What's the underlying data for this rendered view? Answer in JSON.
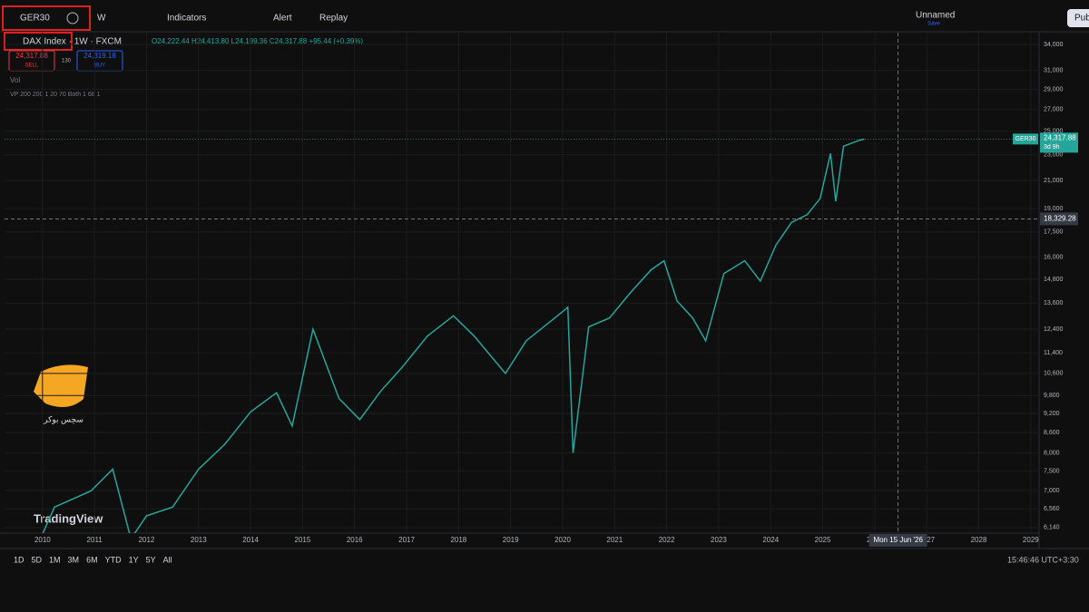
{
  "toolbar": {
    "symbol": "GER30",
    "interval": "W",
    "indicators": "Indicators",
    "alert": "Alert",
    "replay": "Replay",
    "layout": "Unnamed",
    "save": "Save",
    "publish": "Pub"
  },
  "legend": {
    "title": "DAX Index · 1W · FXCM",
    "ohlc": "O24,222.44 H24,413.80 L24,199.36 C24,317.88 +95.44 (+0.39%)",
    "sell_price": "24,317.88",
    "sell": "SELL",
    "spread": "130",
    "buy_price": "24,319.18",
    "buy": "BUY",
    "vol": "Vol",
    "vp": "VP 200 200 1 20 70 Both 1 68 1"
  },
  "watermark": {
    "brand": "TradingView",
    "broker": "سچس بوکر"
  },
  "chart_data": {
    "type": "line",
    "log_scale": true,
    "color": "#26a69a",
    "x": [
      2010.0,
      2010.23,
      2010.93,
      2011.35,
      2011.7,
      2012.0,
      2012.5,
      2013.0,
      2013.5,
      2014.0,
      2014.5,
      2014.8,
      2015.2,
      2015.7,
      2016.1,
      2016.5,
      2016.9,
      2017.4,
      2017.9,
      2018.3,
      2018.9,
      2019.3,
      2019.9,
      2020.1,
      2020.2,
      2020.5,
      2020.9,
      2021.3,
      2021.7,
      2021.95,
      2022.2,
      2022.5,
      2022.75,
      2023.1,
      2023.5,
      2023.8,
      2024.1,
      2024.4,
      2024.7,
      2024.95,
      2025.15,
      2025.25,
      2025.4,
      2025.7,
      2025.8
    ],
    "values": [
      6000,
      6600,
      6990,
      7550,
      5900,
      6400,
      6600,
      7550,
      8240,
      9250,
      9900,
      8800,
      12400,
      9700,
      9000,
      9950,
      10800,
      12100,
      13000,
      12100,
      10600,
      11900,
      13000,
      13400,
      8000,
      12500,
      12900,
      14100,
      15300,
      15800,
      13700,
      12900,
      11900,
      15100,
      15800,
      14700,
      16700,
      18100,
      18600,
      19700,
      23100,
      19500,
      23700,
      24200,
      24317.88
    ],
    "xlim": [
      2009.27,
      2029.16
    ],
    "ylim": [
      6020,
      35450
    ],
    "xticks": [
      2010,
      2011,
      2012,
      2013,
      2014,
      2015,
      2016,
      2017,
      2018,
      2019,
      2020,
      2021,
      2022,
      2023,
      2024,
      2025,
      2026,
      2027,
      2028,
      2029
    ],
    "yticks": [
      {
        "value": 34000,
        "label": "34,000"
      },
      {
        "value": 31000,
        "label": "31,000"
      },
      {
        "value": 29000,
        "label": "29,000"
      },
      {
        "value": 27000,
        "label": "27,000"
      },
      {
        "value": 25000,
        "label": "25,000"
      },
      {
        "value": 23000,
        "label": "23,000"
      },
      {
        "value": 21000,
        "label": "21,000"
      },
      {
        "value": 19000,
        "label": "19,000"
      },
      {
        "value": 17500,
        "label": "17,500"
      },
      {
        "value": 16000,
        "label": "16,000"
      },
      {
        "value": 14800,
        "label": "14,800"
      },
      {
        "value": 13600,
        "label": "13,600"
      },
      {
        "value": 12400,
        "label": "12,400"
      },
      {
        "value": 11400,
        "label": "11,400"
      },
      {
        "value": 10600,
        "label": "10,600"
      },
      {
        "value": 9800,
        "label": "9,800"
      },
      {
        "value": 9200,
        "label": "9,200"
      },
      {
        "value": 8600,
        "label": "8,600"
      },
      {
        "value": 8000,
        "label": "8,000"
      },
      {
        "value": 7500,
        "label": "7,500"
      },
      {
        "value": 7000,
        "label": "7,000"
      },
      {
        "value": 6560,
        "label": "6,560"
      },
      {
        "value": 6140,
        "label": "6,140"
      }
    ],
    "grid": true,
    "last_price": {
      "value": 24317.88,
      "label": "24,317.88",
      "symbol": "GER30",
      "countdown": "3d 9h"
    },
    "crosshair": {
      "value": 18329.28,
      "label": "18,329.28",
      "date": "Mon 15 Jun '26",
      "x": 2026.45
    }
  },
  "bottom_bar": {
    "ranges": [
      "1D",
      "5D",
      "1M",
      "3M",
      "6M",
      "YTD",
      "1Y",
      "5Y",
      "All"
    ],
    "clock": "15:46:46 UTC+3:30"
  }
}
